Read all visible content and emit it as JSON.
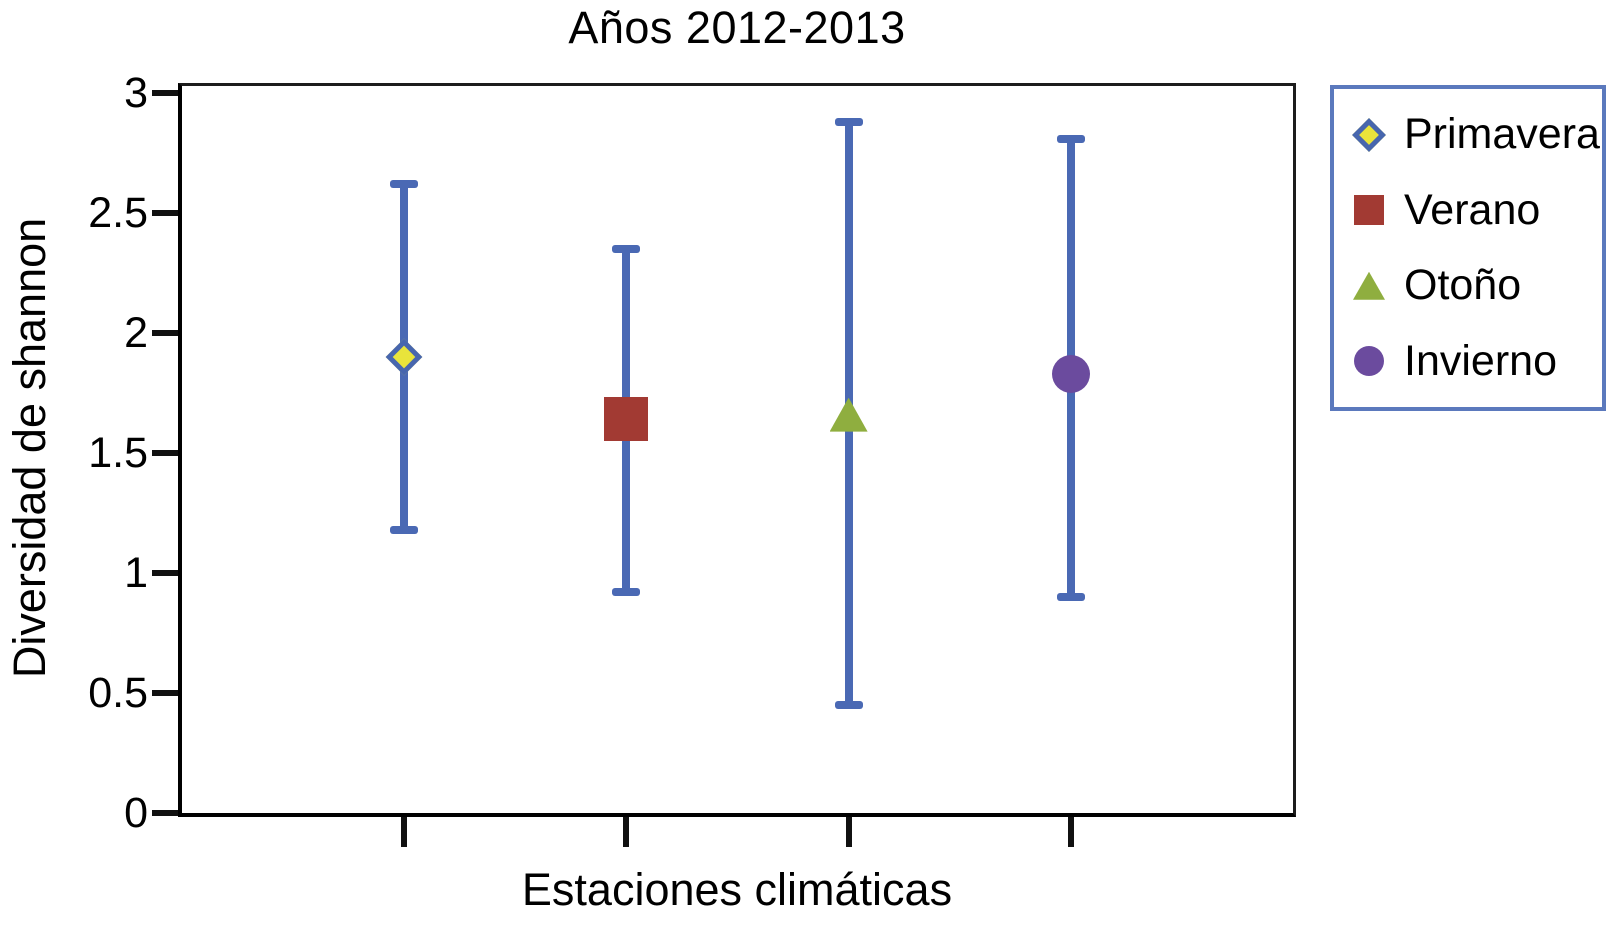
{
  "figure": {
    "title": "Años 2012-2013",
    "x_axis_label": "Estaciones climáticas",
    "y_axis_label": "Diversidad de shannon"
  },
  "legend": {
    "position": "outside top-right",
    "items": [
      "Primavera",
      "Verano",
      "Otoño",
      "Invierno"
    ]
  },
  "colors": {
    "error_bar": "#4a69b4",
    "legend_border": "#5b79bd",
    "axis_frame": "#1c1c1c",
    "text": "#000000"
  },
  "chart_data": {
    "type": "scatter",
    "subtype": "point-estimates-with-error-bars",
    "title": "Años 2012-2013",
    "xlabel": "Estaciones climáticas",
    "ylabel": "Diversidad de shannon",
    "ylim": [
      0,
      3
    ],
    "y_ticks": [
      3,
      2.5,
      2,
      1.5,
      1,
      0.5,
      0
    ],
    "x_ticks": "four unlabeled category ticks",
    "grid": false,
    "legend_position": "outside top-right",
    "error_bar_color": "#4a69b4",
    "series": [
      {
        "name": "Primavera",
        "marker": "diamond",
        "marker_fill": "#e9e43b",
        "marker_border": "#4766ae",
        "y": 1.9,
        "y_upper": 2.62,
        "y_lower": 1.18
      },
      {
        "name": "Verano",
        "marker": "square",
        "marker_fill": "#a23a33",
        "marker_border": "#a23a33",
        "y": 1.64,
        "y_upper": 2.35,
        "y_lower": 0.92
      },
      {
        "name": "Otoño",
        "marker": "triangle",
        "marker_fill": "#8fae3f",
        "marker_border": "#8fae3f",
        "y": 1.66,
        "y_upper": 2.88,
        "y_lower": 0.45
      },
      {
        "name": "Invierno",
        "marker": "circle",
        "marker_fill": "#6b4b9e",
        "marker_border": "#6b4b9e",
        "y": 1.83,
        "y_upper": 2.81,
        "y_lower": 0.9
      }
    ]
  }
}
